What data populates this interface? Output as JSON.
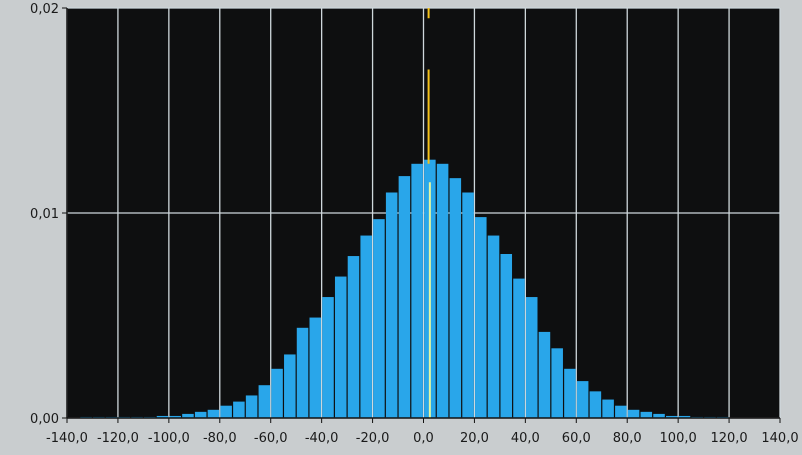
{
  "chart_data": {
    "type": "bar",
    "title": "",
    "xlabel": "",
    "ylabel": "",
    "xlim": [
      -140,
      140
    ],
    "ylim": [
      0,
      0.02
    ],
    "bin_width": 5,
    "x_ticks": [
      "-140,0",
      "-120,0",
      "-100,0",
      "-80,0",
      "-60,0",
      "-40,0",
      "-20,0",
      "0,0",
      "20,0",
      "40,0",
      "60,0",
      "80,0",
      "100,0",
      "120,0",
      "140,0"
    ],
    "y_ticks": [
      "0,00",
      "0,01",
      "0,02"
    ],
    "x_tick_values": [
      -140,
      -120,
      -100,
      -80,
      -60,
      -40,
      -20,
      0,
      20,
      40,
      60,
      80,
      100,
      120,
      140
    ],
    "y_tick_values": [
      0,
      0.01,
      0.02
    ],
    "grid": true,
    "bins": [
      {
        "x": -132.5,
        "y": 5e-05
      },
      {
        "x": -127.5,
        "y": 5e-05
      },
      {
        "x": -122.5,
        "y": 5e-05
      },
      {
        "x": -117.5,
        "y": 5e-05
      },
      {
        "x": -112.5,
        "y": 5e-05
      },
      {
        "x": -107.5,
        "y": 5e-05
      },
      {
        "x": -102.5,
        "y": 0.0001
      },
      {
        "x": -97.5,
        "y": 0.0001
      },
      {
        "x": -92.5,
        "y": 0.0002
      },
      {
        "x": -87.5,
        "y": 0.0003
      },
      {
        "x": -82.5,
        "y": 0.0004
      },
      {
        "x": -77.5,
        "y": 0.0006
      },
      {
        "x": -72.5,
        "y": 0.0008
      },
      {
        "x": -67.5,
        "y": 0.0011
      },
      {
        "x": -62.5,
        "y": 0.0016
      },
      {
        "x": -57.5,
        "y": 0.0024
      },
      {
        "x": -52.5,
        "y": 0.0031
      },
      {
        "x": -47.5,
        "y": 0.0044
      },
      {
        "x": -42.5,
        "y": 0.0049
      },
      {
        "x": -37.5,
        "y": 0.0059
      },
      {
        "x": -32.5,
        "y": 0.0069
      },
      {
        "x": -27.5,
        "y": 0.0079
      },
      {
        "x": -22.5,
        "y": 0.0089
      },
      {
        "x": -17.5,
        "y": 0.0097
      },
      {
        "x": -12.5,
        "y": 0.011
      },
      {
        "x": -7.5,
        "y": 0.0118
      },
      {
        "x": -2.5,
        "y": 0.0124
      },
      {
        "x": 2.5,
        "y": 0.0126
      },
      {
        "x": 7.5,
        "y": 0.0124
      },
      {
        "x": 12.5,
        "y": 0.0117
      },
      {
        "x": 17.5,
        "y": 0.011
      },
      {
        "x": 22.5,
        "y": 0.0098
      },
      {
        "x": 27.5,
        "y": 0.0089
      },
      {
        "x": 32.5,
        "y": 0.008
      },
      {
        "x": 37.5,
        "y": 0.0068
      },
      {
        "x": 42.5,
        "y": 0.0059
      },
      {
        "x": 47.5,
        "y": 0.0042
      },
      {
        "x": 52.5,
        "y": 0.0034
      },
      {
        "x": 57.5,
        "y": 0.0024
      },
      {
        "x": 62.5,
        "y": 0.0018
      },
      {
        "x": 67.5,
        "y": 0.0013
      },
      {
        "x": 72.5,
        "y": 0.0009
      },
      {
        "x": 77.5,
        "y": 0.0006
      },
      {
        "x": 82.5,
        "y": 0.0004
      },
      {
        "x": 87.5,
        "y": 0.0003
      },
      {
        "x": 92.5,
        "y": 0.0002
      },
      {
        "x": 97.5,
        "y": 0.0001
      },
      {
        "x": 102.5,
        "y": 0.0001
      },
      {
        "x": 107.5,
        "y": 5e-05
      },
      {
        "x": 112.5,
        "y": 5e-05
      },
      {
        "x": 117.5,
        "y": 5e-05
      }
    ],
    "markers": [
      {
        "name": "yellow-marker-line",
        "x": 2,
        "color": "#f5c21a",
        "segments": [
          [
            0.0195,
            0.02
          ],
          [
            0.0124,
            0.017
          ]
        ]
      },
      {
        "name": "light-marker-line",
        "x": 2.5,
        "color": "#e6f7a0",
        "segments": [
          [
            0.0,
            0.0115
          ]
        ]
      }
    ],
    "colors": {
      "bar": "#29a6ea",
      "plot_background": "#0e0f10",
      "grid": "#cfd8dc",
      "frame_background": "#c9cdcf",
      "tick_text": "#1a1a1a"
    }
  }
}
